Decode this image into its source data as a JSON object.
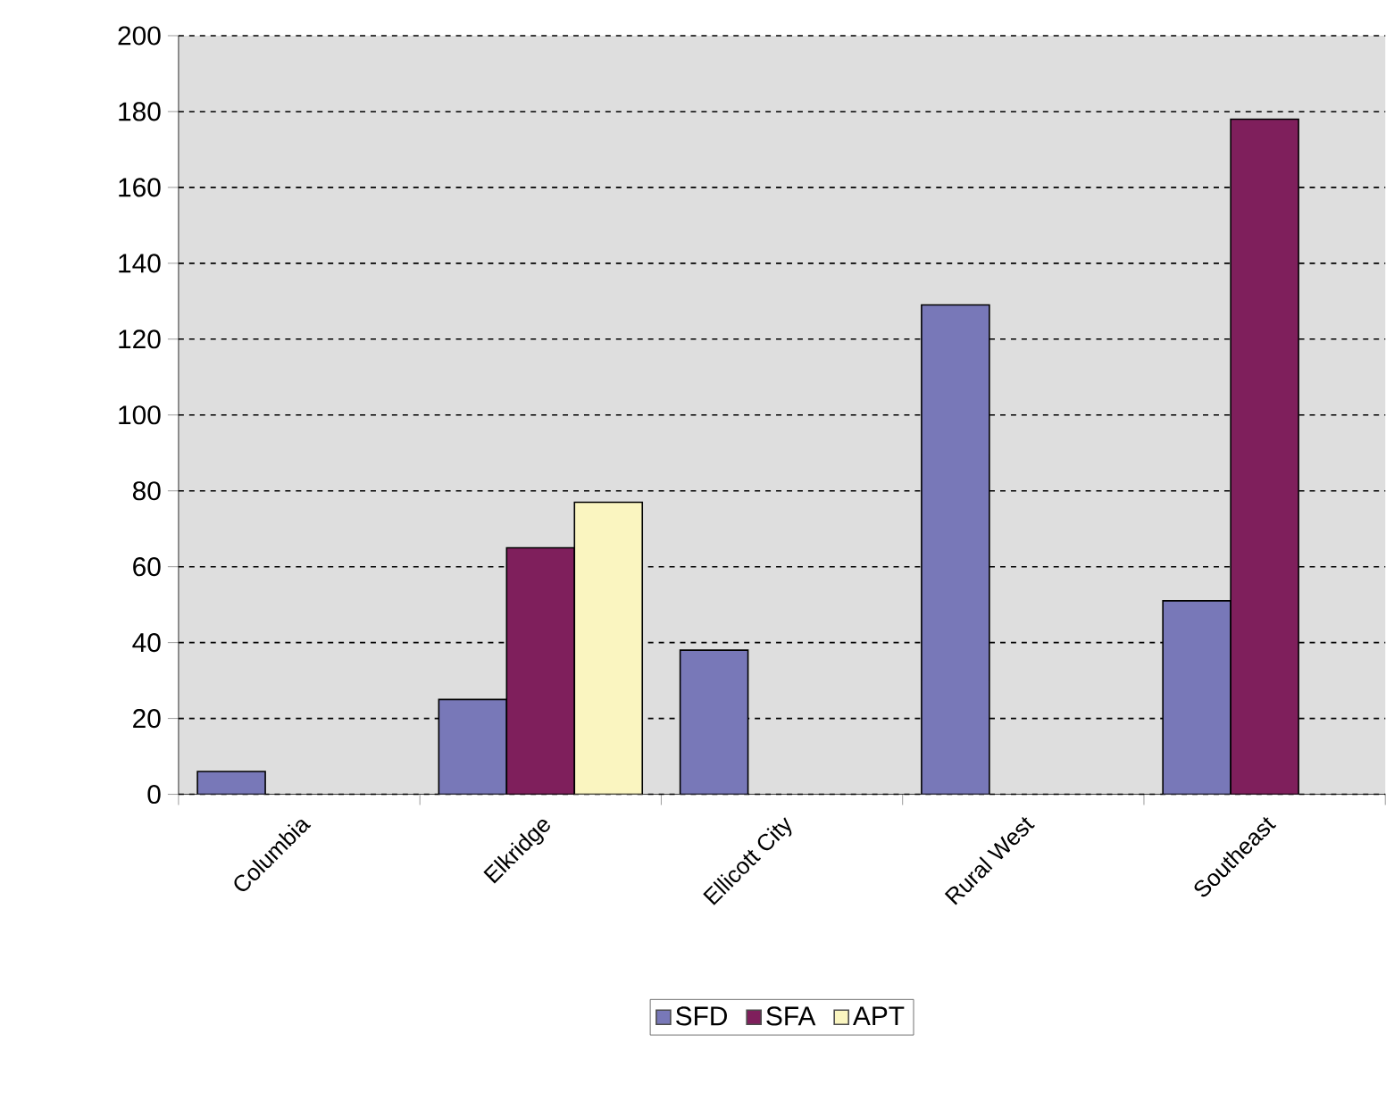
{
  "chart_data": {
    "type": "bar",
    "categories": [
      "Columbia",
      "Elkridge",
      "Ellicott City",
      "Rural West",
      "Southeast"
    ],
    "series": [
      {
        "name": "SFD",
        "color": "#7878b8",
        "values": [
          6,
          25,
          38,
          129,
          51
        ]
      },
      {
        "name": "SFA",
        "color": "#7f1f5c",
        "values": [
          null,
          65,
          null,
          null,
          178
        ]
      },
      {
        "name": "APT",
        "color": "#faf5c0",
        "values": [
          null,
          77,
          null,
          null,
          null
        ]
      }
    ],
    "ylim": [
      0,
      200
    ],
    "yticks": [
      0,
      20,
      40,
      60,
      80,
      100,
      120,
      140,
      160,
      180,
      200
    ],
    "grid": "y",
    "legend": "bottom"
  }
}
